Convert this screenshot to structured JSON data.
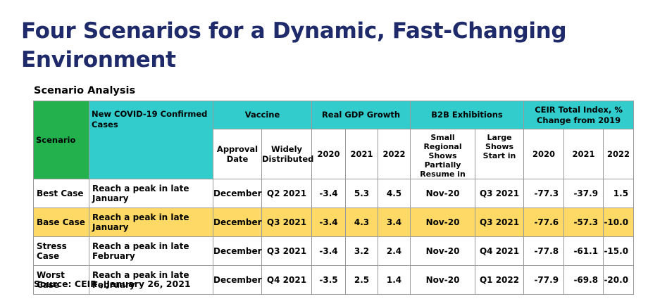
{
  "title": "Four Scenarios for a Dynamic, Fast-Changing Environment",
  "subtitle": "Scenario Analysis",
  "source": "Source: CEIR , January 26, 2021",
  "colors": {
    "title": "#1f2a6b",
    "header_teal": "#33cccc",
    "scenario_green": "#22b14c",
    "base_highlight": "#ffd966"
  },
  "table": {
    "header": {
      "scenario": "Scenario",
      "covid": "New COVID-19  Confirmed Cases",
      "vaccine": "Vaccine",
      "gdp": "Real GDP Growth",
      "b2b": "B2B Exhibitions",
      "ceir": "CEIR Total Index, % Change from 2019"
    },
    "subheader": {
      "approval": "Approval Date",
      "widely": "Widely Distributed",
      "gdp_2020": "2020",
      "gdp_2021": "2021",
      "gdp_2022": "2022",
      "small": "Small Regional Shows Partially Resume in",
      "large": "Large Shows Start in",
      "ceir_2020": "2020",
      "ceir_2021": "2021",
      "ceir_2022": "2022"
    },
    "rows": [
      {
        "scenario": "Best Case",
        "covid": "Reach a peak in late January",
        "approval": "December",
        "widely": "Q2 2021",
        "gdp2020": "-3.4",
        "gdp2021": "5.3",
        "gdp2022": "4.5",
        "small": "Nov-20",
        "large": "Q3 2021",
        "ceir2020": "-77.3",
        "ceir2021": "-37.9",
        "ceir2022": "1.5"
      },
      {
        "scenario": "Base  Case",
        "covid": "Reach a peak in late January",
        "approval": "December",
        "widely": "Q3 2021",
        "gdp2020": "-3.4",
        "gdp2021": "4.3",
        "gdp2022": "3.4",
        "small": "Nov-20",
        "large": "Q3 2021",
        "ceir2020": "-77.6",
        "ceir2021": "-57.3",
        "ceir2022": "-10.0"
      },
      {
        "scenario": "Stress Case",
        "covid": "Reach a peak in late February",
        "approval": "December",
        "widely": "Q3 2021",
        "gdp2020": "-3.4",
        "gdp2021": "3.2",
        "gdp2022": "2.4",
        "small": "Nov-20",
        "large": "Q4 2021",
        "ceir2020": "-77.8",
        "ceir2021": "-61.1",
        "ceir2022": "-15.0"
      },
      {
        "scenario": "Worst Case",
        "covid": "Reach a peak in late February",
        "approval": "December",
        "widely": "Q4 2021",
        "gdp2020": "-3.5",
        "gdp2021": "2.5",
        "gdp2022": "1.4",
        "small": "Nov-20",
        "large": "Q1 2022",
        "ceir2020": "-77.9",
        "ceir2021": "-69.8",
        "ceir2022": "-20.0"
      }
    ]
  }
}
